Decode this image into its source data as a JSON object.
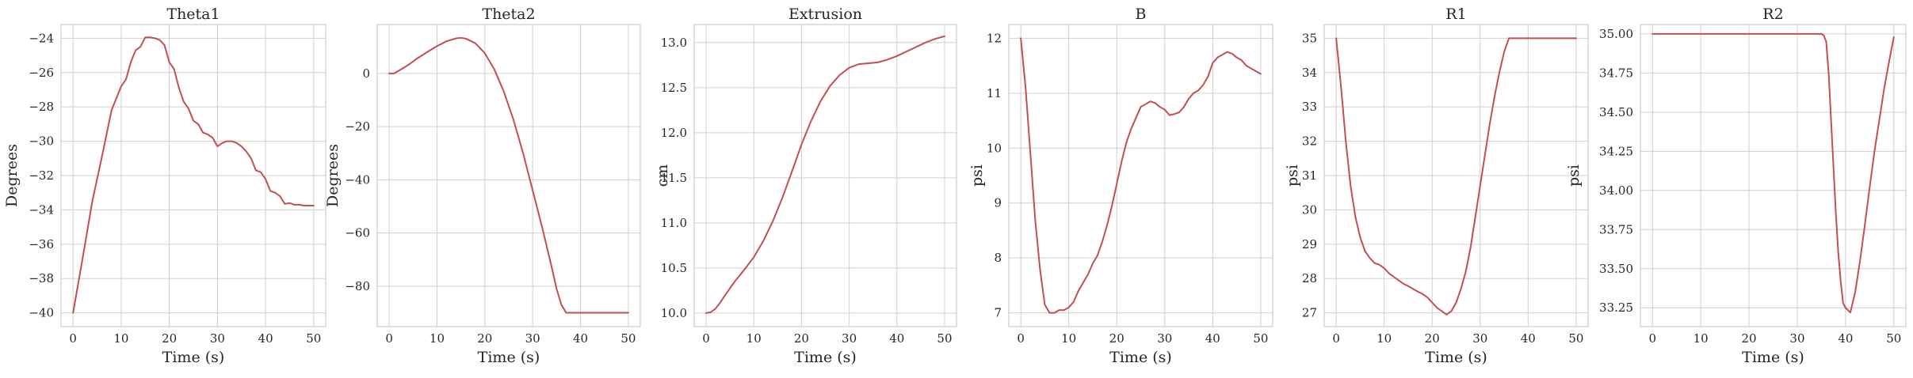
{
  "style": {
    "line_color": "#c44e52",
    "grid_color": "#d0d0d0",
    "background": "#ffffff"
  },
  "chart_data": [
    {
      "type": "line",
      "title": "Theta1",
      "xlabel": "Time (s)",
      "ylabel": "Degrees",
      "xlim": [
        -2.5,
        52.5
      ],
      "ylim": [
        -40.8,
        -23.2
      ],
      "xticks": [
        0,
        10,
        20,
        30,
        40,
        50
      ],
      "yticks": [
        -40,
        -38,
        -36,
        -34,
        -32,
        -30,
        -28,
        -26,
        -24
      ],
      "ytick_labels": [
        "−40",
        "−38",
        "−36",
        "−34",
        "−32",
        "−30",
        "−28",
        "−26",
        "−24"
      ],
      "grid": true,
      "series": [
        {
          "x": [
            0,
            2,
            4,
            6,
            8,
            10,
            11,
            12,
            13,
            14,
            15,
            16,
            17,
            18,
            19,
            20,
            21,
            22,
            23,
            24,
            25,
            26,
            27,
            28,
            29,
            30,
            31,
            32,
            33,
            34,
            35,
            36,
            37,
            38,
            39,
            40,
            41,
            42,
            43,
            44,
            45,
            46,
            47,
            48,
            50
          ],
          "y": [
            -40,
            -36.8,
            -33.5,
            -30.9,
            -28.2,
            -26.8,
            -26.4,
            -25.4,
            -24.7,
            -24.5,
            -23.95,
            -23.95,
            -24.0,
            -24.1,
            -24.4,
            -25.4,
            -25.8,
            -26.9,
            -27.7,
            -28.1,
            -28.8,
            -29.0,
            -29.5,
            -29.6,
            -29.8,
            -30.3,
            -30.1,
            -30.0,
            -30.0,
            -30.1,
            -30.3,
            -30.6,
            -31.0,
            -31.7,
            -31.8,
            -32.2,
            -32.9,
            -33.0,
            -33.2,
            -33.65,
            -33.6,
            -33.7,
            -33.7,
            -33.75,
            -33.75
          ]
        }
      ]
    },
    {
      "type": "line",
      "title": "Theta2",
      "xlabel": "Time (s)",
      "ylabel": "Degrees",
      "xlim": [
        -2.5,
        52.5
      ],
      "ylim": [
        -95.2,
        18.4
      ],
      "xticks": [
        0,
        10,
        20,
        30,
        40,
        50
      ],
      "yticks": [
        -80,
        -60,
        -40,
        -20,
        0
      ],
      "ytick_labels": [
        "−80",
        "−60",
        "−40",
        "−20",
        "0"
      ],
      "grid": true,
      "series": [
        {
          "x": [
            0,
            1,
            2,
            4,
            6,
            8,
            10,
            12,
            14,
            15,
            16,
            18,
            20,
            22,
            24,
            26,
            28,
            30,
            32,
            34,
            35,
            36,
            37,
            40,
            45,
            50
          ],
          "y": [
            0,
            0,
            1,
            3.2,
            5.8,
            8.1,
            10.3,
            12.1,
            13.2,
            13.4,
            13.1,
            11.4,
            7.6,
            1.5,
            -7,
            -17.5,
            -30,
            -44,
            -58,
            -73,
            -81,
            -87,
            -90,
            -90,
            -90,
            -90
          ]
        }
      ]
    },
    {
      "type": "line",
      "title": "Extrusion",
      "xlabel": "Time (s)",
      "ylabel": "cm",
      "xlim": [
        -2.5,
        52.5
      ],
      "ylim": [
        9.85,
        13.2
      ],
      "xticks": [
        0,
        10,
        20,
        30,
        40,
        50
      ],
      "yticks": [
        10.0,
        10.5,
        11.0,
        11.5,
        12.0,
        12.5,
        13.0
      ],
      "ytick_labels": [
        "10.0",
        "10.5",
        "11.0",
        "11.5",
        "12.0",
        "12.5",
        "13.0"
      ],
      "grid": true,
      "series": [
        {
          "x": [
            0,
            1,
            2,
            3,
            4,
            6,
            8,
            10,
            12,
            14,
            16,
            18,
            20,
            22,
            24,
            26,
            28,
            30,
            32,
            34,
            36,
            38,
            40,
            42,
            44,
            46,
            48,
            50
          ],
          "y": [
            10.0,
            10.01,
            10.05,
            10.12,
            10.2,
            10.35,
            10.48,
            10.62,
            10.8,
            11.02,
            11.28,
            11.57,
            11.87,
            12.13,
            12.35,
            12.52,
            12.64,
            12.72,
            12.76,
            12.77,
            12.78,
            12.81,
            12.85,
            12.9,
            12.95,
            13.0,
            13.04,
            13.07
          ]
        }
      ]
    },
    {
      "type": "line",
      "title": "B",
      "xlabel": "Time (s)",
      "ylabel": "psi",
      "xlim": [
        -2.5,
        52.5
      ],
      "ylim": [
        6.75,
        12.25
      ],
      "xticks": [
        0,
        10,
        20,
        30,
        40,
        50
      ],
      "yticks": [
        7,
        8,
        9,
        10,
        11,
        12
      ],
      "ytick_labels": [
        "7",
        "8",
        "9",
        "10",
        "11",
        "12"
      ],
      "grid": true,
      "series": [
        {
          "x": [
            0,
            1,
            2,
            3,
            4,
            5,
            6,
            7,
            8,
            9,
            10,
            11,
            12,
            13,
            14,
            15,
            16,
            17,
            18,
            19,
            20,
            21,
            22,
            23,
            24,
            25,
            26,
            27,
            28,
            29,
            30,
            31,
            32,
            33,
            34,
            35,
            36,
            37,
            38,
            39,
            40,
            41,
            42,
            43,
            44,
            45,
            46,
            47,
            48,
            49,
            50
          ],
          "y": [
            12,
            11.1,
            9.9,
            8.7,
            7.8,
            7.15,
            7.0,
            7.0,
            7.05,
            7.05,
            7.1,
            7.2,
            7.4,
            7.55,
            7.7,
            7.9,
            8.05,
            8.3,
            8.6,
            8.95,
            9.35,
            9.75,
            10.1,
            10.35,
            10.55,
            10.75,
            10.8,
            10.85,
            10.82,
            10.75,
            10.7,
            10.6,
            10.62,
            10.65,
            10.75,
            10.9,
            11.0,
            11.05,
            11.15,
            11.3,
            11.55,
            11.65,
            11.7,
            11.75,
            11.72,
            11.65,
            11.6,
            11.5,
            11.45,
            11.4,
            11.35
          ]
        }
      ]
    },
    {
      "type": "line",
      "title": "R1",
      "xlabel": "Time (s)",
      "ylabel": "psi",
      "xlim": [
        -2.5,
        52.5
      ],
      "ylim": [
        26.6,
        35.4
      ],
      "xticks": [
        0,
        10,
        20,
        30,
        40,
        50
      ],
      "yticks": [
        27,
        28,
        29,
        30,
        31,
        32,
        33,
        34,
        35
      ],
      "ytick_labels": [
        "27",
        "28",
        "29",
        "30",
        "31",
        "32",
        "33",
        "34",
        "35"
      ],
      "grid": true,
      "series": [
        {
          "x": [
            0,
            1,
            2,
            3,
            4,
            5,
            6,
            7,
            8,
            9,
            10,
            11,
            12,
            13,
            14,
            15,
            16,
            17,
            18,
            19,
            20,
            21,
            22,
            23,
            24,
            25,
            26,
            27,
            28,
            29,
            30,
            31,
            32,
            33,
            34,
            35,
            36,
            40,
            45,
            50
          ],
          "y": [
            35,
            33.6,
            32.0,
            30.7,
            29.8,
            29.2,
            28.8,
            28.6,
            28.45,
            28.4,
            28.3,
            28.15,
            28.05,
            27.95,
            27.85,
            27.78,
            27.7,
            27.62,
            27.55,
            27.45,
            27.3,
            27.15,
            27.05,
            26.95,
            27.05,
            27.3,
            27.7,
            28.2,
            28.9,
            29.8,
            30.7,
            31.6,
            32.5,
            33.3,
            34.0,
            34.6,
            35.0,
            35.0,
            35.0,
            35.0
          ]
        }
      ]
    },
    {
      "type": "line",
      "title": "R2",
      "xlabel": "Time (s)",
      "ylabel": "psi",
      "xlim": [
        -2.5,
        52.5
      ],
      "ylim": [
        33.13,
        35.06
      ],
      "xticks": [
        0,
        10,
        20,
        30,
        40,
        50
      ],
      "yticks": [
        33.25,
        33.5,
        33.75,
        34.0,
        34.25,
        34.5,
        34.75,
        35.0
      ],
      "ytick_labels": [
        "33.25",
        "33.50",
        "33.75",
        "34.00",
        "34.25",
        "34.50",
        "34.75",
        "35.00"
      ],
      "grid": true,
      "series": [
        {
          "x": [
            0,
            10,
            20,
            30,
            35,
            35.5,
            36,
            36.5,
            37,
            37.5,
            38,
            38.5,
            39,
            39.5,
            40,
            41,
            42,
            43,
            44,
            45,
            46,
            47,
            48,
            49,
            50
          ],
          "y": [
            35.0,
            35.0,
            35.0,
            35.0,
            35.0,
            34.99,
            34.95,
            34.75,
            34.45,
            34.15,
            33.85,
            33.6,
            33.42,
            33.28,
            33.25,
            33.22,
            33.35,
            33.55,
            33.78,
            34.02,
            34.25,
            34.45,
            34.65,
            34.82,
            34.98
          ]
        }
      ]
    }
  ]
}
